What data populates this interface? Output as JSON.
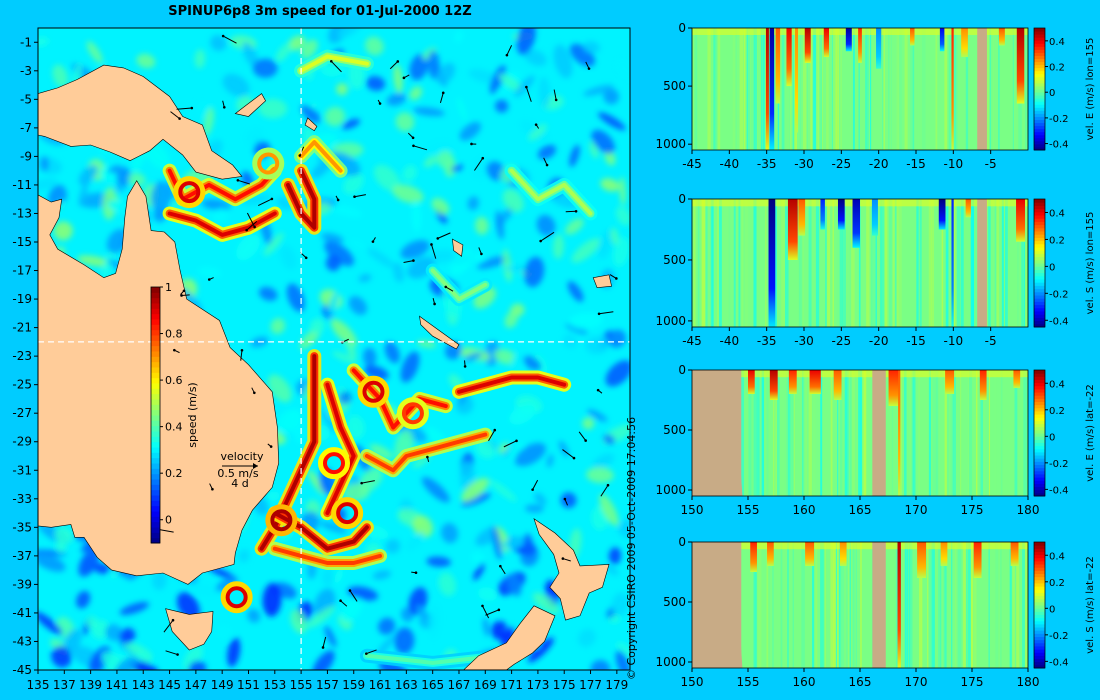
{
  "title": "SPINUP6p8 3m speed for 01-Jul-2000 12Z",
  "copyright": "© Copyright CSIRO 2009   05-Oct-2009 17:04:56",
  "colors": {
    "background": "#00ccff",
    "land": "#ffcc99",
    "profile_land": "#c8ab86"
  },
  "chart_data": [
    {
      "type": "heatmap",
      "title": "SPINUP6p8 3m speed for 01-Jul-2000 12Z",
      "x_ticks": [
        135,
        137,
        139,
        141,
        143,
        145,
        147,
        149,
        151,
        153,
        155,
        157,
        159,
        161,
        163,
        165,
        167,
        169,
        171,
        173,
        175,
        177,
        179
      ],
      "y_ticks": [
        -1,
        -3,
        -5,
        -7,
        -9,
        -11,
        -13,
        -15,
        -17,
        -19,
        -21,
        -23,
        -25,
        -27,
        -29,
        -31,
        -33,
        -35,
        -37,
        -39,
        -41,
        -43,
        -45
      ],
      "xlim": [
        135,
        180
      ],
      "ylim": [
        -45,
        0
      ],
      "section_lon": 155,
      "section_lat": -22,
      "colorbar": {
        "label": "speed (m/s)",
        "ticks": [
          0,
          0.2,
          0.4,
          0.6,
          0.8,
          1
        ],
        "range": [
          -0.1,
          1
        ]
      },
      "vector_legend": {
        "label": "velocity",
        "speed": "0.5 m/s",
        "duration": "4 d"
      },
      "jets": [
        {
          "path": [
            [
              145,
              -13
            ],
            [
              147,
              -13.5
            ],
            [
              149,
              -14.5
            ],
            [
              151,
              -14
            ],
            [
              153,
              -13
            ]
          ],
          "speed": 0.9
        },
        {
          "path": [
            [
              145,
              -10
            ],
            [
              146,
              -12
            ],
            [
              148,
              -11
            ],
            [
              150,
              -12
            ],
            [
              152,
              -11
            ],
            [
              153,
              -10
            ]
          ],
          "speed": 0.85
        },
        {
          "path": [
            [
              154,
              -11
            ],
            [
              155,
              -13
            ],
            [
              156,
              -14
            ],
            [
              156,
              -12
            ],
            [
              155,
              -10
            ]
          ],
          "speed": 0.95
        },
        {
          "path": [
            [
              155,
              -9
            ],
            [
              156,
              -8
            ],
            [
              157,
              -9
            ],
            [
              158,
              -10
            ]
          ],
          "speed": 0.7
        },
        {
          "path": [
            [
              156,
              -23
            ],
            [
              156,
              -26
            ],
            [
              156,
              -29
            ],
            [
              155,
              -31
            ],
            [
              154,
              -33
            ],
            [
              153,
              -35
            ],
            [
              152,
              -36.5
            ]
          ],
          "speed": 0.95
        },
        {
          "path": [
            [
              157,
              -25
            ],
            [
              158,
              -28
            ],
            [
              159,
              -30
            ],
            [
              158,
              -32
            ],
            [
              157,
              -34
            ]
          ],
          "speed": 0.9
        },
        {
          "path": [
            [
              159,
              -24
            ],
            [
              161,
              -26
            ],
            [
              162,
              -28
            ],
            [
              163,
              -27
            ],
            [
              164,
              -26
            ],
            [
              166,
              -26.5
            ]
          ],
          "speed": 0.85
        },
        {
          "path": [
            [
              160,
              -30
            ],
            [
              162,
              -31
            ],
            [
              163,
              -30
            ],
            [
              165,
              -29.5
            ],
            [
              167,
              -29
            ],
            [
              169,
              -28.5
            ]
          ],
          "speed": 0.8
        },
        {
          "path": [
            [
              153,
              -34
            ],
            [
              155,
              -35
            ],
            [
              157,
              -36.5
            ],
            [
              159,
              -36
            ],
            [
              160,
              -35
            ]
          ],
          "speed": 0.95
        },
        {
          "path": [
            [
              153,
              -36.5
            ],
            [
              155,
              -37
            ],
            [
              157,
              -37.5
            ],
            [
              159,
              -37.5
            ],
            [
              161,
              -37
            ]
          ],
          "speed": 0.8
        },
        {
          "path": [
            [
              167,
              -25.5
            ],
            [
              169,
              -25
            ],
            [
              171,
              -24.5
            ],
            [
              173,
              -24.5
            ],
            [
              175,
              -25
            ]
          ],
          "speed": 0.9
        },
        {
          "path": [
            [
              155,
              -3
            ],
            [
              157,
              -2
            ],
            [
              160,
              -2.5
            ]
          ],
          "speed": 0.55
        },
        {
          "path": [
            [
              171,
              -10
            ],
            [
              173,
              -12
            ],
            [
              175,
              -11
            ],
            [
              177,
              -13
            ]
          ],
          "speed": 0.5
        },
        {
          "path": [
            [
              165,
              -17
            ],
            [
              167,
              -19
            ],
            [
              169,
              -18
            ]
          ],
          "speed": 0.45
        },
        {
          "path": [
            [
              160,
              -44
            ],
            [
              165,
              -44.5
            ],
            [
              170,
              -44
            ]
          ],
          "speed": 0.4
        }
      ],
      "eddies": [
        {
          "lon": 150.1,
          "lat": -39.9,
          "speed": 0.9
        },
        {
          "lon": 146.5,
          "lat": -11.5,
          "speed": 0.9
        },
        {
          "lon": 153.5,
          "lat": -34.5,
          "speed": 0.95
        },
        {
          "lon": 158.5,
          "lat": -34.0,
          "speed": 0.9
        },
        {
          "lon": 160.5,
          "lat": -25.5,
          "speed": 0.9
        },
        {
          "lon": 163.5,
          "lat": -27.0,
          "speed": 0.8
        },
        {
          "lon": 157.5,
          "lat": -30.5,
          "speed": 0.85
        },
        {
          "lon": 152.5,
          "lat": -9.5,
          "speed": 0.7
        }
      ]
    },
    {
      "type": "heatmap",
      "ylabel": "vel. E (m/s) lon=155",
      "x_ticks": [
        -45,
        -40,
        -35,
        -30,
        -25,
        -20,
        -15,
        -10,
        -5
      ],
      "y_ticks": [
        0,
        500,
        1000
      ],
      "xlim": [
        -45,
        0
      ],
      "ylim": [
        1050,
        0
      ],
      "colorbar": {
        "ticks": [
          -0.4,
          -0.2,
          0,
          0.2,
          0.4
        ],
        "range": [
          -0.45,
          0.5
        ]
      },
      "land": [
        [
          -6.8,
          -5.5
        ]
      ],
      "columns": [
        {
          "x": -34.9,
          "w": 0.4,
          "v": 0.45,
          "depth": 1050
        },
        {
          "x": -34.3,
          "w": 0.6,
          "v": -0.42,
          "depth": 1050
        },
        {
          "x": -33.5,
          "w": 0.6,
          "v": 0.3,
          "depth": 650
        },
        {
          "x": -32.0,
          "w": 0.7,
          "v": 0.4,
          "depth": 500
        },
        {
          "x": -31.0,
          "w": 0.4,
          "v": 0.25,
          "depth": 900
        },
        {
          "x": -29.5,
          "w": 0.8,
          "v": 0.45,
          "depth": 300
        },
        {
          "x": -27.0,
          "w": 0.7,
          "v": 0.4,
          "depth": 250
        },
        {
          "x": -24.0,
          "w": 0.8,
          "v": -0.42,
          "depth": 200
        },
        {
          "x": -22.5,
          "w": 0.5,
          "v": 0.35,
          "depth": 300
        },
        {
          "x": -20.0,
          "w": 0.7,
          "v": -0.2,
          "depth": 350
        },
        {
          "x": -15.5,
          "w": 0.6,
          "v": 0.3,
          "depth": 150
        },
        {
          "x": -11.5,
          "w": 0.6,
          "v": -0.35,
          "depth": 200
        },
        {
          "x": -10.1,
          "w": 0.3,
          "v": 0.35,
          "depth": 1050
        },
        {
          "x": -8.5,
          "w": 0.9,
          "v": 0.25,
          "depth": 250
        },
        {
          "x": -3.5,
          "w": 0.8,
          "v": 0.3,
          "depth": 150
        },
        {
          "x": -1.0,
          "w": 1.0,
          "v": 0.45,
          "depth": 650
        }
      ]
    },
    {
      "type": "heatmap",
      "ylabel": "vel. S (m/s) lon=155",
      "x_ticks": [
        -45,
        -40,
        -35,
        -30,
        -25,
        -20,
        -15,
        -10,
        -5
      ],
      "y_ticks": [
        0,
        500,
        1000
      ],
      "xlim": [
        -45,
        0
      ],
      "ylim": [
        1050,
        0
      ],
      "colorbar": {
        "ticks": [
          -0.4,
          -0.2,
          0,
          0.2,
          0.4
        ],
        "range": [
          -0.45,
          0.5
        ]
      },
      "land": [
        [
          -6.8,
          -5.5
        ]
      ],
      "columns": [
        {
          "x": -34.3,
          "w": 0.9,
          "v": -0.45,
          "depth": 1050
        },
        {
          "x": -31.5,
          "w": 1.3,
          "v": 0.45,
          "depth": 500
        },
        {
          "x": -30.3,
          "w": 0.9,
          "v": 0.3,
          "depth": 300
        },
        {
          "x": -27.5,
          "w": 0.6,
          "v": -0.3,
          "depth": 250
        },
        {
          "x": -25.0,
          "w": 0.9,
          "v": -0.45,
          "depth": 250
        },
        {
          "x": -23.0,
          "w": 1.0,
          "v": -0.4,
          "depth": 400
        },
        {
          "x": -20.5,
          "w": 0.8,
          "v": -0.2,
          "depth": 300
        },
        {
          "x": -11.5,
          "w": 0.9,
          "v": -0.45,
          "depth": 250
        },
        {
          "x": -10.1,
          "w": 0.3,
          "v": -0.3,
          "depth": 1050
        },
        {
          "x": -8.0,
          "w": 0.7,
          "v": 0.3,
          "depth": 150
        },
        {
          "x": -1.0,
          "w": 1.2,
          "v": 0.4,
          "depth": 350
        }
      ]
    },
    {
      "type": "heatmap",
      "ylabel": "vel. E (m/s) lat=-22",
      "x_ticks": [
        150,
        155,
        160,
        165,
        170,
        175,
        180
      ],
      "y_ticks": [
        0,
        500,
        1000
      ],
      "xlim": [
        150,
        180
      ],
      "ylim": [
        1050,
        0
      ],
      "colorbar": {
        "ticks": [
          -0.4,
          -0.2,
          0,
          0.2,
          0.4
        ],
        "range": [
          -0.45,
          0.5
        ]
      },
      "land": [
        [
          150,
          154.4
        ],
        [
          166.1,
          167.3
        ]
      ],
      "land_step": {
        "x0": 152.4,
        "x1": 154.5,
        "depth0": 0,
        "depth1": 1050
      },
      "columns": [
        {
          "x": 155.3,
          "w": 0.6,
          "v": 0.4,
          "depth": 200
        },
        {
          "x": 157.3,
          "w": 0.7,
          "v": 0.45,
          "depth": 250
        },
        {
          "x": 159.0,
          "w": 0.7,
          "v": 0.35,
          "depth": 200
        },
        {
          "x": 161.0,
          "w": 1.0,
          "v": 0.4,
          "depth": 200
        },
        {
          "x": 163.0,
          "w": 0.7,
          "v": 0.3,
          "depth": 250
        },
        {
          "x": 168.0,
          "w": 0.9,
          "v": 0.35,
          "depth": 300
        },
        {
          "x": 168.5,
          "w": 0.2,
          "v": 0.3,
          "depth": 1050
        },
        {
          "x": 173.0,
          "w": 0.8,
          "v": 0.3,
          "depth": 200
        },
        {
          "x": 176.0,
          "w": 0.6,
          "v": 0.35,
          "depth": 250
        },
        {
          "x": 179.0,
          "w": 0.6,
          "v": 0.3,
          "depth": 150
        }
      ]
    },
    {
      "type": "heatmap",
      "ylabel": "vel. S (m/s) lat=-22",
      "x_ticks": [
        150,
        155,
        160,
        165,
        170,
        175,
        180
      ],
      "y_ticks": [
        0,
        500,
        1000
      ],
      "xlim": [
        150,
        180
      ],
      "ylim": [
        1050,
        0
      ],
      "colorbar": {
        "ticks": [
          -0.4,
          -0.2,
          0,
          0.2,
          0.4
        ],
        "range": [
          -0.45,
          0.5
        ]
      },
      "land": [
        [
          150,
          154.4
        ],
        [
          166.1,
          167.3
        ]
      ],
      "land_step": {
        "x0": 152.4,
        "x1": 154.5,
        "depth0": 0,
        "depth1": 1050
      },
      "columns": [
        {
          "x": 155.5,
          "w": 0.6,
          "v": 0.35,
          "depth": 250
        },
        {
          "x": 157.0,
          "w": 0.6,
          "v": 0.3,
          "depth": 200
        },
        {
          "x": 160.5,
          "w": 0.8,
          "v": 0.3,
          "depth": 200
        },
        {
          "x": 163.5,
          "w": 0.6,
          "v": 0.25,
          "depth": 200
        },
        {
          "x": 168.5,
          "w": 0.3,
          "v": 0.45,
          "depth": 1050
        },
        {
          "x": 170.5,
          "w": 0.8,
          "v": 0.3,
          "depth": 300
        },
        {
          "x": 172.5,
          "w": 0.6,
          "v": 0.25,
          "depth": 200
        },
        {
          "x": 175.5,
          "w": 0.7,
          "v": 0.35,
          "depth": 300
        },
        {
          "x": 178.8,
          "w": 0.7,
          "v": 0.3,
          "depth": 200
        }
      ]
    }
  ]
}
